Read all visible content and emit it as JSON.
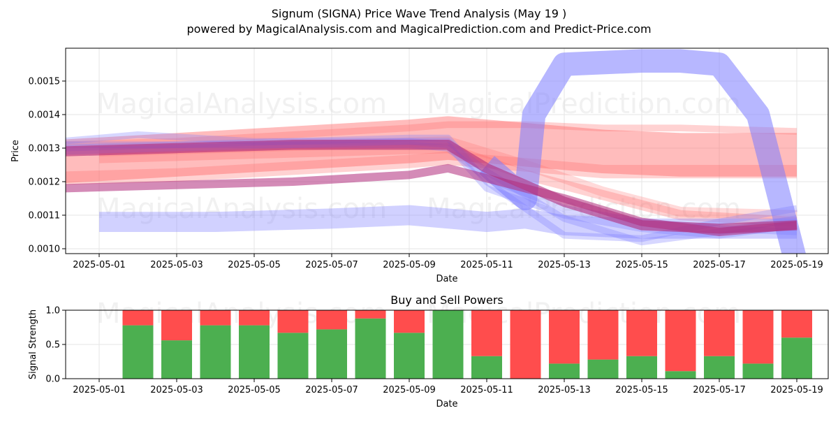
{
  "title": "Signum (SIGNA) Price Wave Trend Analysis (May 19 )",
  "subtitle": "powered by MagicalAnalysis.com and MagicalPrediction.com and Predict-Price.com",
  "watermarks": [
    "MagicalAnalysis.com",
    "MagicalPrediction.com"
  ],
  "colors": {
    "buy": "#4caf50",
    "sell": "#ff4d4d",
    "red_band": "#ff6b6b",
    "blue_band": "#7b7bff",
    "grid": "#e6e6e6"
  },
  "chart_data": [
    {
      "type": "area",
      "title": "",
      "xlabel": "Date",
      "ylabel": "Price",
      "x_ticks": [
        "2025-05-01",
        "2025-05-03",
        "2025-05-05",
        "2025-05-07",
        "2025-05-09",
        "2025-05-11",
        "2025-05-13",
        "2025-05-15",
        "2025-05-17",
        "2025-05-19"
      ],
      "y_ticks": [
        "0.0010",
        "0.0011",
        "0.0012",
        "0.0013",
        "0.0014",
        "0.0015"
      ],
      "xlim": [
        "2025-04-30",
        "2025-05-19"
      ],
      "ylim": [
        0.00098,
        0.00159
      ],
      "grid": true,
      "series": [
        {
          "color": "red",
          "opacity": 0.3,
          "width": 2e-05,
          "x": [
            "2025-04-30",
            "2025-05-03",
            "2025-05-06",
            "2025-05-09",
            "2025-05-10",
            "2025-05-12",
            "2025-05-14",
            "2025-05-16",
            "2025-05-19"
          ],
          "y": [
            0.00131,
            0.00132,
            0.00134,
            0.00136,
            0.00137,
            0.00137,
            0.00136,
            0.00136,
            0.00135
          ]
        },
        {
          "color": "red",
          "opacity": 0.45,
          "width": 0.00013,
          "x": [
            "2025-04-30",
            "2025-05-03",
            "2025-05-06",
            "2025-05-09",
            "2025-05-10",
            "2025-05-12",
            "2025-05-14",
            "2025-05-16",
            "2025-05-19"
          ],
          "y": [
            0.00126,
            0.00128,
            0.0013,
            0.00132,
            0.00133,
            0.00131,
            0.00129,
            0.00128,
            0.00128
          ]
        },
        {
          "color": "red",
          "opacity": 0.3,
          "width": 4e-05,
          "x": [
            "2025-04-30",
            "2025-05-03",
            "2025-05-06",
            "2025-05-09",
            "2025-05-10",
            "2025-05-12",
            "2025-05-14",
            "2025-05-16",
            "2025-05-19"
          ],
          "y": [
            0.00121,
            0.00122,
            0.00124,
            0.00126,
            0.00127,
            0.00125,
            0.00123,
            0.00123,
            0.00123
          ]
        },
        {
          "color": "red",
          "opacity": 0.3,
          "width": 3e-05,
          "x": [
            "2025-05-01",
            "2025-05-04",
            "2025-05-07",
            "2025-05-10",
            "2025-05-12",
            "2025-05-14",
            "2025-05-16",
            "2025-05-19"
          ],
          "y": [
            0.00127,
            0.00128,
            0.00129,
            0.0013,
            0.00122,
            0.00116,
            0.0011,
            0.00108
          ]
        },
        {
          "color": "red",
          "opacity": 0.25,
          "width": 3e-05,
          "x": [
            "2025-05-01",
            "2025-05-04",
            "2025-05-07",
            "2025-05-10",
            "2025-05-12",
            "2025-05-14",
            "2025-05-16",
            "2025-05-19"
          ],
          "y": [
            0.00129,
            0.0013,
            0.00131,
            0.00132,
            0.00125,
            0.00117,
            0.00111,
            0.0011
          ]
        },
        {
          "color": "blue",
          "opacity": 0.35,
          "width": 6e-05,
          "x": [
            "2025-05-01",
            "2025-05-04",
            "2025-05-07",
            "2025-05-09",
            "2025-05-10",
            "2025-05-11",
            "2025-05-12",
            "2025-05-13",
            "2025-05-15",
            "2025-05-17",
            "2025-05-19"
          ],
          "y": [
            0.00108,
            0.00108,
            0.00109,
            0.0011,
            0.00109,
            0.00108,
            0.00109,
            0.00107,
            0.00106,
            0.00106,
            0.00106
          ]
        },
        {
          "color": "blue",
          "opacity": 0.55,
          "width": 7e-05,
          "x": [
            "2025-05-11",
            "2025-05-12",
            "2025-05-12",
            "2025-05-13",
            "2025-05-15",
            "2025-05-16",
            "2025-05-17",
            "2025-05-18",
            "2025-05-19"
          ],
          "y": [
            0.00125,
            0.00115,
            0.0014,
            0.00155,
            0.00156,
            0.00156,
            0.00155,
            0.0014,
            0.00095
          ]
        },
        {
          "color": "blue",
          "opacity": 0.3,
          "width": 2e-05,
          "x": [
            "2025-04-30",
            "2025-05-02",
            "2025-05-05",
            "2025-05-08",
            "2025-05-10",
            "2025-05-11",
            "2025-05-13",
            "2025-05-15",
            "2025-05-17",
            "2025-05-19"
          ],
          "y": [
            0.00132,
            0.00134,
            0.00132,
            0.00132,
            0.00132,
            0.00123,
            0.00109,
            0.00102,
            0.00105,
            0.00109
          ]
        },
        {
          "color": "blue",
          "opacity": 0.3,
          "width": 2e-05,
          "x": [
            "2025-04-30",
            "2025-05-03",
            "2025-05-06",
            "2025-05-09",
            "2025-05-10",
            "2025-05-11",
            "2025-05-13",
            "2025-05-15",
            "2025-05-17",
            "2025-05-19"
          ],
          "y": [
            0.00131,
            0.00131,
            0.00132,
            0.00133,
            0.00133,
            0.0012,
            0.00104,
            0.00103,
            0.00108,
            0.00112
          ]
        },
        {
          "color": "blue",
          "opacity": 0.3,
          "width": 2e-05,
          "x": [
            "2025-04-30",
            "2025-05-03",
            "2025-05-06",
            "2025-05-09",
            "2025-05-10",
            "2025-05-11",
            "2025-05-13",
            "2025-05-15",
            "2025-05-17",
            "2025-05-19"
          ],
          "y": [
            0.00129,
            0.0013,
            0.00131,
            0.00132,
            0.00131,
            0.00118,
            0.0011,
            0.00106,
            0.00104,
            0.00107
          ]
        },
        {
          "color": "blue",
          "opacity": 0.3,
          "width": 2e-05,
          "x": [
            "2025-04-30",
            "2025-05-03",
            "2025-05-06",
            "2025-05-09",
            "2025-05-10",
            "2025-05-11",
            "2025-05-13",
            "2025-05-15",
            "2025-05-17",
            "2025-05-19"
          ],
          "y": [
            0.0013,
            0.00131,
            0.00131,
            0.00131,
            0.0013,
            0.00121,
            0.00112,
            0.00108,
            0.00106,
            0.00105
          ]
        },
        {
          "color": "purple",
          "opacity": 0.6,
          "width": 3e-05,
          "x": [
            "2025-04-30",
            "2025-05-03",
            "2025-05-06",
            "2025-05-09",
            "2025-05-10",
            "2025-05-11",
            "2025-05-13",
            "2025-05-15",
            "2025-05-17",
            "2025-05-19"
          ],
          "y": [
            0.00129,
            0.0013,
            0.00131,
            0.00131,
            0.00131,
            0.00124,
            0.00114,
            0.00107,
            0.00106,
            0.00107
          ]
        },
        {
          "color": "purple",
          "opacity": 0.55,
          "width": 2.5e-05,
          "x": [
            "2025-04-30",
            "2025-05-03",
            "2025-05-06",
            "2025-05-09",
            "2025-05-10",
            "2025-05-11",
            "2025-05-13",
            "2025-05-15",
            "2025-05-17",
            "2025-05-19"
          ],
          "y": [
            0.00118,
            0.00119,
            0.0012,
            0.00122,
            0.00124,
            0.00121,
            0.00115,
            0.00108,
            0.00105,
            0.00107
          ]
        }
      ]
    },
    {
      "type": "bar",
      "title": "Buy and Sell Powers",
      "xlabel": "Date",
      "ylabel": "Signal Strength",
      "x_ticks": [
        "2025-05-01",
        "2025-05-03",
        "2025-05-05",
        "2025-05-07",
        "2025-05-09",
        "2025-05-11",
        "2025-05-13",
        "2025-05-15",
        "2025-05-17",
        "2025-05-19"
      ],
      "y_ticks": [
        "0.0",
        "0.5",
        "1.0"
      ],
      "ylim": [
        0,
        1
      ],
      "categories": [
        "2025-05-02",
        "2025-05-03",
        "2025-05-04",
        "2025-05-05",
        "2025-05-06",
        "2025-05-07",
        "2025-05-08",
        "2025-05-09",
        "2025-05-10",
        "2025-05-11",
        "2025-05-12",
        "2025-05-13",
        "2025-05-14",
        "2025-05-15",
        "2025-05-16",
        "2025-05-17",
        "2025-05-18",
        "2025-05-19"
      ],
      "series": [
        {
          "name": "Buy",
          "values": [
            0.78,
            0.56,
            0.78,
            0.78,
            0.67,
            0.72,
            0.88,
            0.67,
            1.0,
            0.33,
            0.0,
            0.22,
            0.28,
            0.33,
            0.11,
            0.33,
            0.22,
            0.6
          ]
        },
        {
          "name": "Sell",
          "values": [
            0.22,
            0.44,
            0.22,
            0.22,
            0.33,
            0.28,
            0.12,
            0.33,
            0.0,
            0.67,
            1.0,
            0.78,
            0.72,
            0.67,
            0.89,
            0.67,
            0.78,
            0.4
          ]
        }
      ]
    }
  ]
}
